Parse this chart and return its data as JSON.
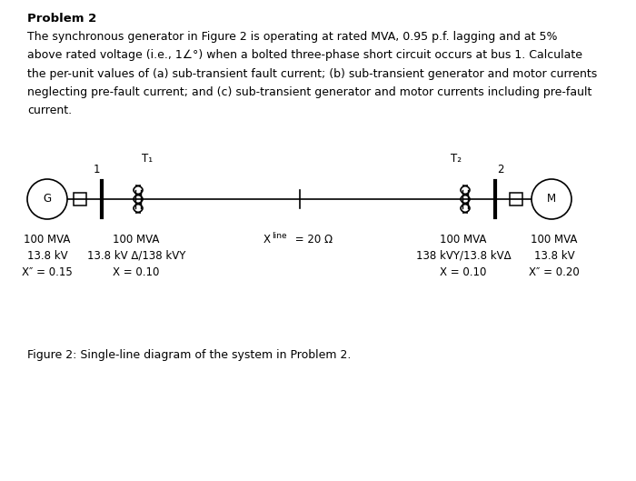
{
  "title": "Problem 2",
  "paragraph": "The synchronous generator in Figure 2 is operating at rated MVA, 0.95 p.f. lagging and at 5%\nabove rated voltage (i.e., 1∠° ) when a bolted three-phase short circuit occurs at bus 1. Calculate\nthe per-unit values of (a) sub-transient fault current; (b) sub-transient generator and motor currents\nneglecting pre-fault current; and (c) sub-transient generator and motor currents including pre-fault\ncurrent.",
  "figure_caption": "Figure 2: Single-line diagram of the system in Problem 2.",
  "bg_color": "#ffffff",
  "text_color": "#000000",
  "col1_line1": "100 MVA",
  "col1_line2": "13.8 kV",
  "col1_line3": "X″ = 0.15",
  "col2_line1": "100 MVA",
  "col2_line2": "13.8 kV Δ/138 kVY",
  "col2_line3": "X = 0.10",
  "col3_line1": "X",
  "col3_line1b": "line",
  "col3_line1c": " = 20 Ω",
  "col4_line1": "100 MVA",
  "col4_line2": "138 kVY/13.8 kVΔ",
  "col4_line3": "X = 0.10",
  "col5_line1": "100 MVA",
  "col5_line2": "13.8 kV",
  "col5_line3": "X″ = 0.20",
  "T1_label": "T₁",
  "T2_label": "T₂",
  "bus1_label": "1",
  "bus2_label": "2",
  "G_label": "G",
  "M_label": "M"
}
